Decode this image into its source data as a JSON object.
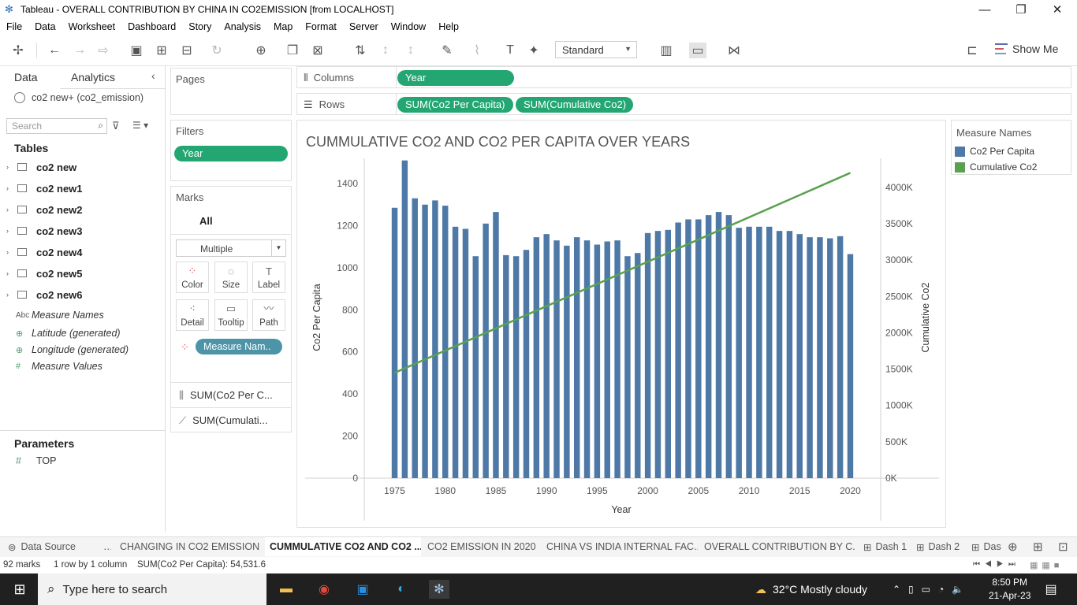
{
  "window": {
    "title": "Tableau - OVERALL CONTRIBUTION BY CHINA IN CO2EMISSION [from LOCALHOST]"
  },
  "menu": [
    "File",
    "Data",
    "Worksheet",
    "Dashboard",
    "Story",
    "Analysis",
    "Map",
    "Format",
    "Server",
    "Window",
    "Help"
  ],
  "toolbar": {
    "fit": "Standard",
    "show_me": "Show Me"
  },
  "data_pane": {
    "tab_data": "Data",
    "tab_analytics": "Analytics",
    "datasource": "co2 new+ (co2_emission)",
    "search_placeholder": "Search",
    "tables_header": "Tables",
    "tables": [
      "co2 new",
      "co2 new1",
      "co2 new2",
      "co2 new3",
      "co2 new4",
      "co2 new5",
      "co2 new6"
    ],
    "fields": [
      {
        "icon": "Abc",
        "name": "Measure Names"
      },
      {
        "icon": "⊕",
        "name": "Latitude (generated)"
      },
      {
        "icon": "⊕",
        "name": "Longitude (generated)"
      },
      {
        "icon": "#",
        "name": "Measure Values"
      }
    ],
    "parameters_header": "Parameters",
    "parameters": [
      {
        "icon": "#",
        "name": "TOP"
      }
    ]
  },
  "cards": {
    "pages": "Pages",
    "filters": "Filters",
    "filter_pill": "Year",
    "marks": "Marks",
    "marks_all": "All",
    "mark_type": "Multiple",
    "mark_buttons": [
      "Color",
      "Size",
      "Label",
      "Detail",
      "Tooltip",
      "Path"
    ],
    "color_pill": "Measure Nam..",
    "mark_measures": [
      "SUM(Co2 Per C...",
      "SUM(Cumulati..."
    ]
  },
  "shelves": {
    "columns_label": "Columns",
    "columns_pill": "Year",
    "rows_label": "Rows",
    "rows_pills": [
      "SUM(Co2 Per Capita)",
      "SUM(Cumulative Co2)"
    ]
  },
  "legend": {
    "title": "Measure Names",
    "items": [
      {
        "name": "Co2 Per Capita",
        "color": "#4e79a7"
      },
      {
        "name": "Cumulative Co2",
        "color": "#59a14f"
      }
    ]
  },
  "chart_data": {
    "type": "bar",
    "title": "CUMMULATIVE CO2 AND CO2 PER CAPITA OVER YEARS",
    "xlabel": "Year",
    "ylabel": "Co2 Per Capita",
    "y2label": "Cumulative Co2",
    "x_ticks": [
      "1975",
      "1980",
      "1985",
      "1990",
      "1995",
      "2000",
      "2005",
      "2010",
      "2015",
      "2020"
    ],
    "y_ticks": [
      "0",
      "200",
      "400",
      "600",
      "800",
      "1000",
      "1200",
      "1400"
    ],
    "y2_ticks": [
      "0K",
      "500K",
      "1000K",
      "1500K",
      "2000K",
      "2500K",
      "3000K",
      "3500K",
      "4000K"
    ],
    "ylim": [
      0,
      1520
    ],
    "y2lim": [
      0,
      4400000
    ],
    "xlim": [
      1972,
      2023
    ],
    "grid": false,
    "legend_position": "right",
    "series": [
      {
        "name": "Co2 Per Capita",
        "type": "bar",
        "color": "#4e79a7",
        "x": [
          1975,
          1976,
          1977,
          1978,
          1979,
          1980,
          1981,
          1982,
          1983,
          1984,
          1985,
          1986,
          1987,
          1988,
          1989,
          1990,
          1991,
          1992,
          1993,
          1994,
          1995,
          1996,
          1997,
          1998,
          1999,
          2000,
          2001,
          2002,
          2003,
          2004,
          2005,
          2006,
          2007,
          2008,
          2009,
          2010,
          2011,
          2012,
          2013,
          2014,
          2015,
          2016,
          2017,
          2018,
          2019,
          2020
        ],
        "values": [
          1285,
          1510,
          1330,
          1300,
          1320,
          1295,
          1195,
          1185,
          1055,
          1210,
          1265,
          1060,
          1055,
          1085,
          1145,
          1160,
          1130,
          1105,
          1145,
          1130,
          1110,
          1125,
          1130,
          1055,
          1070,
          1165,
          1175,
          1180,
          1215,
          1230,
          1230,
          1250,
          1265,
          1250,
          1190,
          1195,
          1195,
          1195,
          1175,
          1175,
          1160,
          1145,
          1145,
          1140,
          1150,
          1065
        ]
      },
      {
        "name": "Cumulative Co2",
        "type": "line",
        "color": "#59a14f",
        "x": [
          1975,
          2020
        ],
        "values": [
          1450000,
          4200000
        ]
      }
    ]
  },
  "sheet_tabs": {
    "data_source": "Data Source",
    "tabs": [
      "CHANGING IN CO2 EMISSION",
      "CUMMULATIVE CO2 AND CO2 ...",
      "CO2 EMISSION IN 2020",
      "CHINA VS INDIA INTERNAL FAC...",
      "OVERALL CONTRIBUTION BY C...",
      "Dash 1",
      "Dash 2",
      "Das"
    ]
  },
  "status": {
    "marks": "92 marks",
    "rows": "1 row by 1 column",
    "sum": "SUM(Co2 Per Capita): 54,531.6"
  },
  "taskbar": {
    "search": "Type here to search",
    "weather": "32°C  Mostly cloudy",
    "time": "8:50 PM",
    "date": "21-Apr-23"
  }
}
